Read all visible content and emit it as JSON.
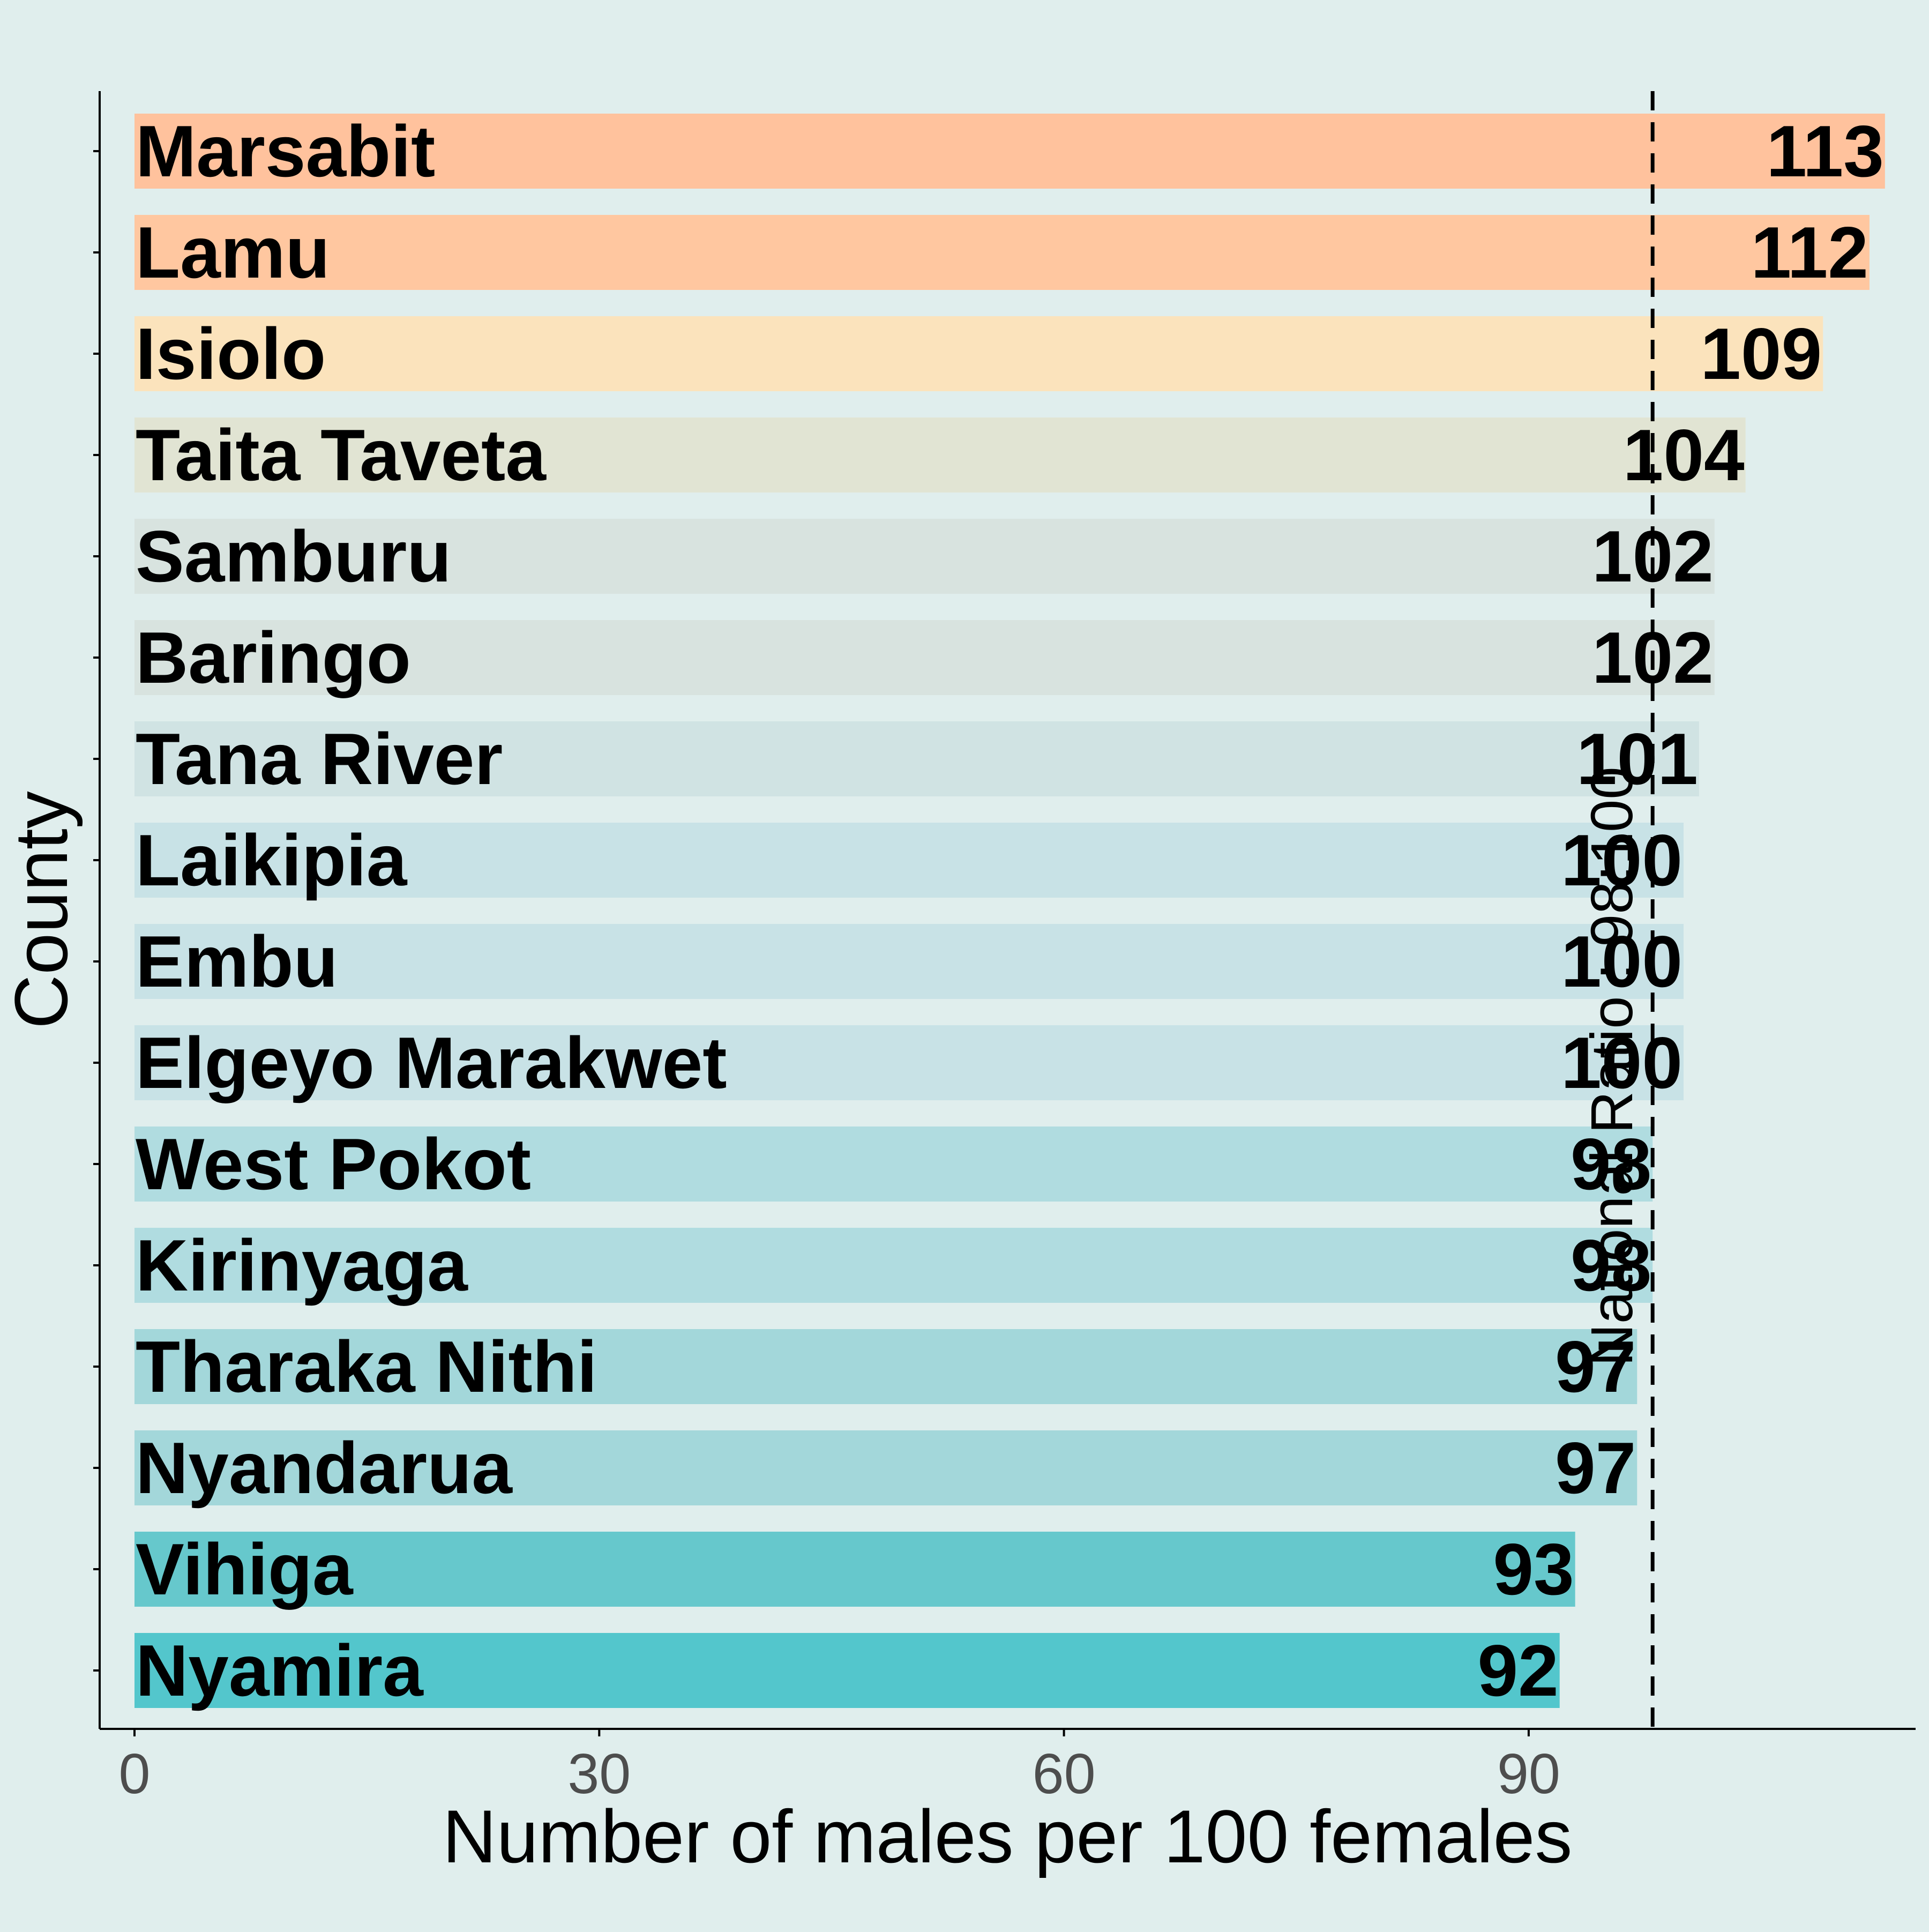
{
  "chart_data": {
    "type": "bar",
    "orientation": "horizontal",
    "title": "",
    "xlabel": "Number of males per 100 females",
    "ylabel": "County",
    "xlim": [
      -2.2,
      115
    ],
    "x_ticks": [
      0,
      30,
      60,
      90
    ],
    "grid": false,
    "legend": "none",
    "categories": [
      "Marsabit",
      "Lamu",
      "Isiolo",
      "Taita Taveta",
      "Samburu",
      "Baringo",
      "Tana River",
      "Laikipia",
      "Embu",
      "Elgeyo Marakwet",
      "West Pokot",
      "Kirinyaga",
      "Tharaka Nithi",
      "Nyandarua",
      "Vihiga",
      "Nyamira"
    ],
    "values": [
      113,
      112,
      109,
      104,
      102,
      102,
      101,
      100,
      100,
      100,
      98,
      98,
      97,
      97,
      93,
      92
    ],
    "bar_colors": [
      "#ffc29d",
      "#ffc7a0",
      "#fbe3bc",
      "#e1e4d3",
      "#d8e3df",
      "#d8e3df",
      "#d0e3e3",
      "#c8e2e6",
      "#c8e2e6",
      "#c8e2e6",
      "#b0dce0",
      "#b0dce0",
      "#a3d7da",
      "#a3d7da",
      "#66c8cc",
      "#53c6cc"
    ],
    "reference_line": {
      "value": 98,
      "label": "National Ratio : 98:100",
      "style": "dashed"
    }
  },
  "colors": {
    "background": "#e0eeed",
    "axis": "#000000",
    "tick_label": "#4d4d4d",
    "text": "#000000"
  }
}
